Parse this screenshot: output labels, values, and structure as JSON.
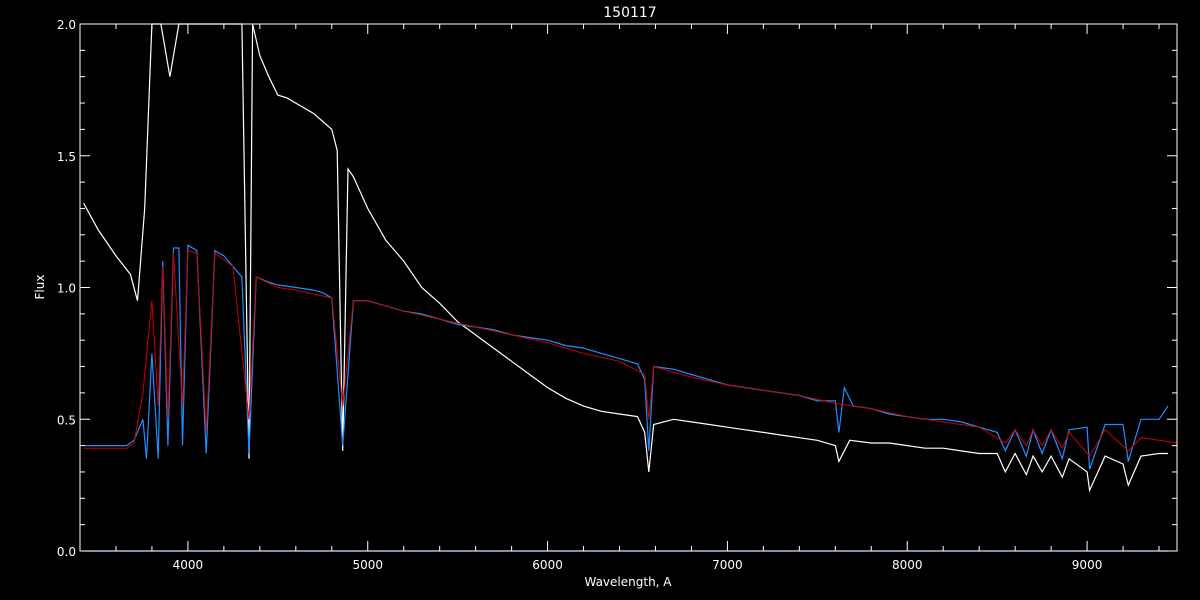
{
  "chart_data": {
    "type": "line",
    "title": "150117",
    "xlabel": "Wavelength, A",
    "ylabel": "Flux",
    "xlim": [
      3400,
      9500
    ],
    "ylim": [
      0,
      2.0
    ],
    "x_ticks": [
      4000,
      5000,
      6000,
      7000,
      8000,
      9000
    ],
    "x_tick_labels": [
      "4000",
      "5000",
      "6000",
      "7000",
      "8000",
      "9000"
    ],
    "y_ticks": [
      0.0,
      0.5,
      1.0,
      1.5,
      2.0
    ],
    "y_tick_labels": [
      "0.0",
      "0.5",
      "1.0",
      "1.5",
      "2.0"
    ],
    "grid": false,
    "background": "#000000",
    "axis_color": "#ffffff",
    "series": [
      {
        "color": "#ffffff",
        "x": [
          3420,
          3500,
          3600,
          3680,
          3720,
          3760,
          3800,
          3850,
          3900,
          3950,
          4000,
          4050,
          4100,
          4150,
          4200,
          4250,
          4300,
          4340,
          4360,
          4400,
          4450,
          4500,
          4550,
          4600,
          4650,
          4700,
          4750,
          4800,
          4830,
          4861,
          4890,
          4920,
          5000,
          5100,
          5200,
          5300,
          5400,
          5500,
          5600,
          5700,
          5800,
          5900,
          6000,
          6100,
          6200,
          6300,
          6400,
          6500,
          6540,
          6563,
          6590,
          6700,
          6800,
          6900,
          7000,
          7100,
          7200,
          7300,
          7400,
          7500,
          7600,
          7620,
          7680,
          7800,
          7900,
          8000,
          8100,
          8200,
          8300,
          8400,
          8500,
          8545,
          8600,
          8662,
          8700,
          8750,
          8800,
          8862,
          8900,
          9000,
          9014,
          9100,
          9200,
          9229,
          9300,
          9400,
          9450
        ],
        "y": [
          1.32,
          1.22,
          1.12,
          1.05,
          0.95,
          1.3,
          2.0,
          2.0,
          1.8,
          2.0,
          2.0,
          2.0,
          2.0,
          2.0,
          2.0,
          2.0,
          2.0,
          0.35,
          2.0,
          1.88,
          1.8,
          1.73,
          1.72,
          1.7,
          1.68,
          1.66,
          1.63,
          1.6,
          1.52,
          0.38,
          1.45,
          1.42,
          1.3,
          1.18,
          1.1,
          1.0,
          0.94,
          0.87,
          0.82,
          0.77,
          0.72,
          0.67,
          0.62,
          0.58,
          0.55,
          0.53,
          0.52,
          0.51,
          0.45,
          0.3,
          0.48,
          0.5,
          0.49,
          0.48,
          0.47,
          0.46,
          0.45,
          0.44,
          0.43,
          0.42,
          0.4,
          0.34,
          0.42,
          0.41,
          0.41,
          0.4,
          0.39,
          0.39,
          0.38,
          0.37,
          0.37,
          0.3,
          0.37,
          0.29,
          0.36,
          0.3,
          0.36,
          0.28,
          0.35,
          0.3,
          0.23,
          0.36,
          0.33,
          0.25,
          0.36,
          0.37,
          0.37
        ]
      },
      {
        "color": "#1f8fff",
        "x": [
          3420,
          3500,
          3600,
          3660,
          3700,
          3750,
          3770,
          3800,
          3835,
          3860,
          3889,
          3920,
          3950,
          3970,
          4000,
          4050,
          4102,
          4150,
          4200,
          4250,
          4300,
          4340,
          4380,
          4450,
          4500,
          4600,
          4700,
          4750,
          4800,
          4861,
          4920,
          5000,
          5100,
          5200,
          5300,
          5400,
          5500,
          5600,
          5700,
          5800,
          5900,
          6000,
          6100,
          6200,
          6300,
          6400,
          6500,
          6540,
          6563,
          6590,
          6700,
          6800,
          6900,
          7000,
          7100,
          7200,
          7300,
          7400,
          7500,
          7600,
          7620,
          7650,
          7700,
          7800,
          7900,
          8000,
          8100,
          8200,
          8300,
          8400,
          8500,
          8545,
          8600,
          8662,
          8700,
          8750,
          8800,
          8862,
          8900,
          9000,
          9014,
          9100,
          9200,
          9229,
          9300,
          9400,
          9450
        ],
        "y": [
          0.4,
          0.4,
          0.4,
          0.4,
          0.42,
          0.5,
          0.35,
          0.75,
          0.35,
          1.1,
          0.4,
          1.15,
          1.15,
          0.4,
          1.16,
          1.14,
          0.37,
          1.14,
          1.12,
          1.08,
          1.04,
          0.37,
          1.04,
          1.02,
          1.01,
          1.0,
          0.99,
          0.98,
          0.96,
          0.4,
          0.95,
          0.95,
          0.93,
          0.91,
          0.9,
          0.88,
          0.86,
          0.85,
          0.84,
          0.82,
          0.81,
          0.8,
          0.78,
          0.77,
          0.75,
          0.73,
          0.71,
          0.65,
          0.38,
          0.7,
          0.69,
          0.67,
          0.65,
          0.63,
          0.62,
          0.61,
          0.6,
          0.59,
          0.57,
          0.57,
          0.45,
          0.62,
          0.55,
          0.54,
          0.52,
          0.51,
          0.5,
          0.5,
          0.49,
          0.47,
          0.45,
          0.38,
          0.46,
          0.36,
          0.46,
          0.37,
          0.46,
          0.35,
          0.46,
          0.47,
          0.31,
          0.48,
          0.48,
          0.34,
          0.5,
          0.5,
          0.55
        ]
      },
      {
        "color": "#cc0000",
        "x": [
          3420,
          3500,
          3600,
          3660,
          3700,
          3750,
          3800,
          3835,
          3860,
          3889,
          3920,
          3970,
          4000,
          4050,
          4102,
          4150,
          4250,
          4340,
          4380,
          4500,
          4600,
          4800,
          4861,
          4920,
          5000,
          5200,
          5400,
          5600,
          5800,
          6000,
          6200,
          6400,
          6540,
          6563,
          6590,
          6800,
          7000,
          7200,
          7400,
          7600,
          7800,
          8000,
          8200,
          8400,
          8545,
          8600,
          8662,
          8700,
          8750,
          8800,
          8862,
          8900,
          9014,
          9100,
          9229,
          9300,
          9400,
          9500
        ],
        "y": [
          0.39,
          0.39,
          0.39,
          0.39,
          0.41,
          0.6,
          0.95,
          0.55,
          1.08,
          0.5,
          1.13,
          0.55,
          1.14,
          1.13,
          0.45,
          1.13,
          1.08,
          0.5,
          1.04,
          1.0,
          0.99,
          0.96,
          0.55,
          0.95,
          0.95,
          0.91,
          0.88,
          0.85,
          0.82,
          0.79,
          0.75,
          0.72,
          0.67,
          0.5,
          0.7,
          0.66,
          0.63,
          0.61,
          0.59,
          0.56,
          0.54,
          0.51,
          0.49,
          0.47,
          0.41,
          0.46,
          0.4,
          0.46,
          0.4,
          0.46,
          0.39,
          0.45,
          0.36,
          0.46,
          0.38,
          0.43,
          0.42,
          0.41
        ]
      },
      {
        "color": "#1f8fff",
        "x": [
          3420,
          4000,
          5000,
          6000,
          7000,
          8000,
          9000,
          9450
        ],
        "y": [
          0.0,
          0.0,
          0.0,
          0.0,
          0.0,
          0.0,
          0.0,
          0.0
        ]
      }
    ]
  }
}
